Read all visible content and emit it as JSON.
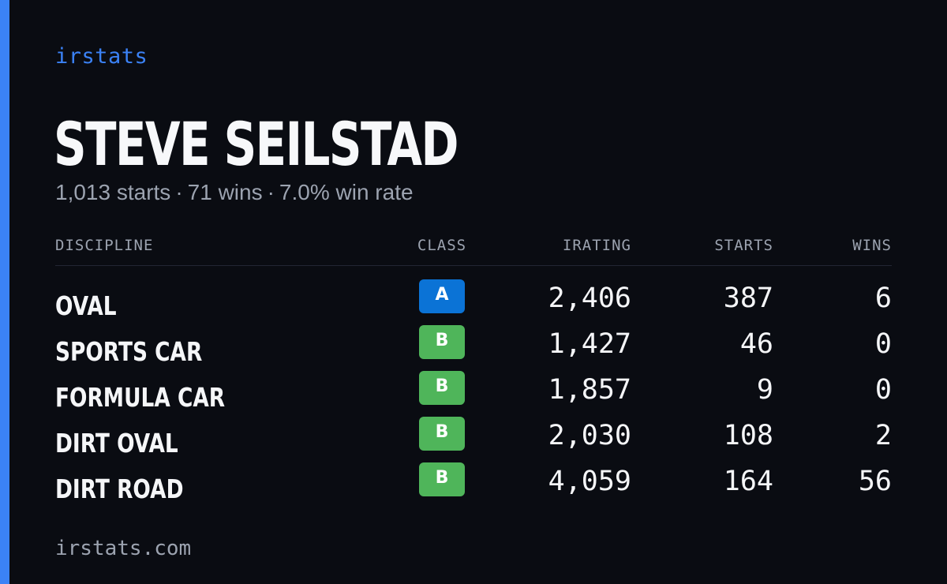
{
  "brand": "irstats",
  "driver": {
    "name": "STEVE SEILSTAD",
    "starts_text": "1,013 starts",
    "wins_text": "71 wins",
    "win_rate_text": "7.0% win rate",
    "separator": "·"
  },
  "table": {
    "headers": {
      "discipline": "DISCIPLINE",
      "class": "CLASS",
      "irating": "IRATING",
      "starts": "STARTS",
      "wins": "WINS"
    },
    "rows": [
      {
        "discipline": "OVAL",
        "class": "A",
        "class_color": "#0b73d6",
        "irating": "2,406",
        "starts": "387",
        "wins": "6"
      },
      {
        "discipline": "SPORTS CAR",
        "class": "B",
        "class_color": "#4fb55a",
        "irating": "1,427",
        "starts": "46",
        "wins": "0"
      },
      {
        "discipline": "FORMULA CAR",
        "class": "B",
        "class_color": "#4fb55a",
        "irating": "1,857",
        "starts": "9",
        "wins": "0"
      },
      {
        "discipline": "DIRT OVAL",
        "class": "B",
        "class_color": "#4fb55a",
        "irating": "2,030",
        "starts": "108",
        "wins": "2"
      },
      {
        "discipline": "DIRT ROAD",
        "class": "B",
        "class_color": "#4fb55a",
        "irating": "4,059",
        "starts": "164",
        "wins": "56"
      }
    ]
  },
  "footer": "irstats.com",
  "colors": {
    "accent": "#3b82f6",
    "background": "#0a0c12",
    "muted_text": "#9ca3b0"
  }
}
